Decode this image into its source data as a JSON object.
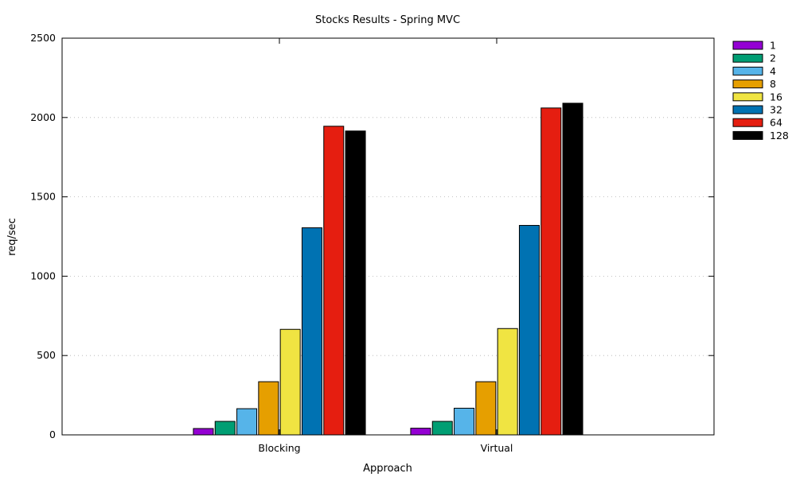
{
  "chart_data": {
    "type": "bar",
    "title": "Stocks Results - Spring MVC",
    "xlabel": "Approach",
    "ylabel": "req/sec",
    "categories": [
      "Blocking",
      "Virtual"
    ],
    "ylim": [
      0,
      2500
    ],
    "yticks": [
      "0",
      "500",
      "1000",
      "1500",
      "2000",
      "2500"
    ],
    "grid": true,
    "legend_position": "top-right, outside plot",
    "series": [
      {
        "name": "1",
        "color": "#9400d3",
        "values": [
          40,
          42
        ]
      },
      {
        "name": "2",
        "color": "#009e73",
        "values": [
          85,
          85
        ]
      },
      {
        "name": "4",
        "color": "#56b4e9",
        "values": [
          165,
          168
        ]
      },
      {
        "name": "8",
        "color": "#e69f00",
        "values": [
          335,
          335
        ]
      },
      {
        "name": "16",
        "color": "#f0e442",
        "values": [
          665,
          670
        ]
      },
      {
        "name": "32",
        "color": "#0072b2",
        "values": [
          1305,
          1320
        ]
      },
      {
        "name": "64",
        "color": "#e51e10",
        "values": [
          1945,
          2060
        ]
      },
      {
        "name": "128",
        "color": "#000000",
        "values": [
          1915,
          2090
        ]
      }
    ]
  }
}
